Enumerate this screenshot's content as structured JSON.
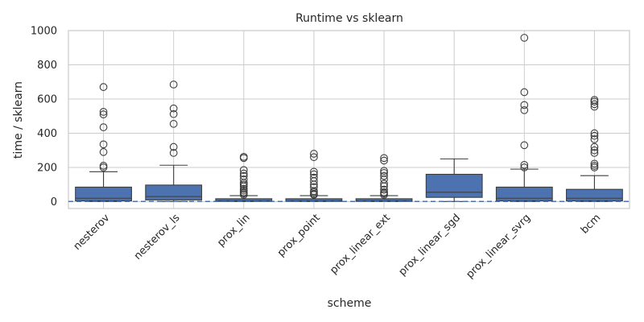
{
  "chart_data": {
    "type": "box",
    "title": "Runtime vs sklearn",
    "xlabel": "scheme",
    "ylabel": "time / sklearn",
    "ylim": [
      -40,
      1000
    ],
    "yticks": [
      0,
      200,
      400,
      600,
      800,
      1000
    ],
    "grid": true,
    "reference_line": {
      "y": 1,
      "style": "dashed",
      "color": "#4c72b0"
    },
    "box_color": "#4c72b0",
    "categories": [
      "nesterov",
      "nesterov_ls",
      "prox_lin",
      "prox_point",
      "prox_linear_ext",
      "prox_linear_sgd",
      "prox_linear_svrg",
      "bcm"
    ],
    "boxes": [
      {
        "whisker_low": 1,
        "q1": 5,
        "median": 20,
        "q3": 85,
        "whisker_high": 175,
        "outliers": [
          200,
          210,
          290,
          335,
          435,
          510,
          525,
          670
        ]
      },
      {
        "whisker_low": 1,
        "q1": 10,
        "median": 30,
        "q3": 97,
        "whisker_high": 213,
        "outliers": [
          285,
          320,
          455,
          512,
          545,
          685
        ]
      },
      {
        "whisker_low": 1,
        "q1": 2,
        "median": 5,
        "q3": 17,
        "whisker_high": 35,
        "outliers": [
          40,
          48,
          55,
          65,
          75,
          90,
          100,
          110,
          130,
          150,
          165,
          185,
          255,
          262
        ]
      },
      {
        "whisker_low": 1,
        "q1": 2,
        "median": 5,
        "q3": 17,
        "whisker_high": 35,
        "outliers": [
          40,
          45,
          55,
          62,
          85,
          100,
          120,
          140,
          160,
          175,
          260,
          280
        ]
      },
      {
        "whisker_low": 1,
        "q1": 2,
        "median": 5,
        "q3": 17,
        "whisker_high": 35,
        "outliers": [
          40,
          48,
          55,
          70,
          90,
          105,
          130,
          150,
          168,
          180,
          240,
          255
        ]
      },
      {
        "whisker_low": 1,
        "q1": 25,
        "median": 55,
        "q3": 160,
        "whisker_high": 250,
        "outliers": []
      },
      {
        "whisker_low": 1,
        "q1": 5,
        "median": 20,
        "q3": 85,
        "whisker_high": 190,
        "outliers": [
          200,
          215,
          330,
          535,
          565,
          640,
          958
        ]
      },
      {
        "whisker_low": 1,
        "q1": 5,
        "median": 20,
        "q3": 72,
        "whisker_high": 152,
        "outliers": [
          200,
          210,
          222,
          285,
          300,
          320,
          365,
          385,
          400,
          555,
          570,
          585,
          595
        ]
      }
    ]
  }
}
